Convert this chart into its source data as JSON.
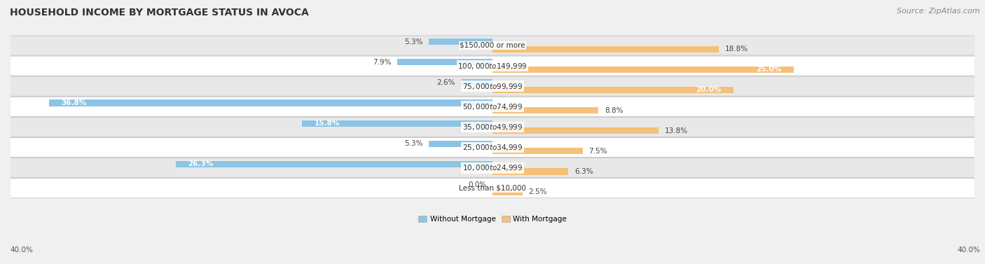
{
  "title": "HOUSEHOLD INCOME BY MORTGAGE STATUS IN AVOCA",
  "source": "Source: ZipAtlas.com",
  "categories": [
    "Less than $10,000",
    "$10,000 to $24,999",
    "$25,000 to $34,999",
    "$35,000 to $49,999",
    "$50,000 to $74,999",
    "$75,000 to $99,999",
    "$100,000 to $149,999",
    "$150,000 or more"
  ],
  "without_mortgage": [
    0.0,
    26.3,
    5.3,
    15.8,
    36.8,
    2.6,
    7.9,
    5.3
  ],
  "with_mortgage": [
    2.5,
    6.3,
    7.5,
    13.8,
    8.8,
    20.0,
    25.0,
    18.8
  ],
  "color_without": "#8DC4E6",
  "color_with": "#F5C07A",
  "axis_limit": 40.0,
  "legend_without": "Without Mortgage",
  "legend_with": "With Mortgage",
  "title_fontsize": 10,
  "source_fontsize": 8,
  "label_fontsize": 7.5,
  "value_fontsize": 7.5
}
